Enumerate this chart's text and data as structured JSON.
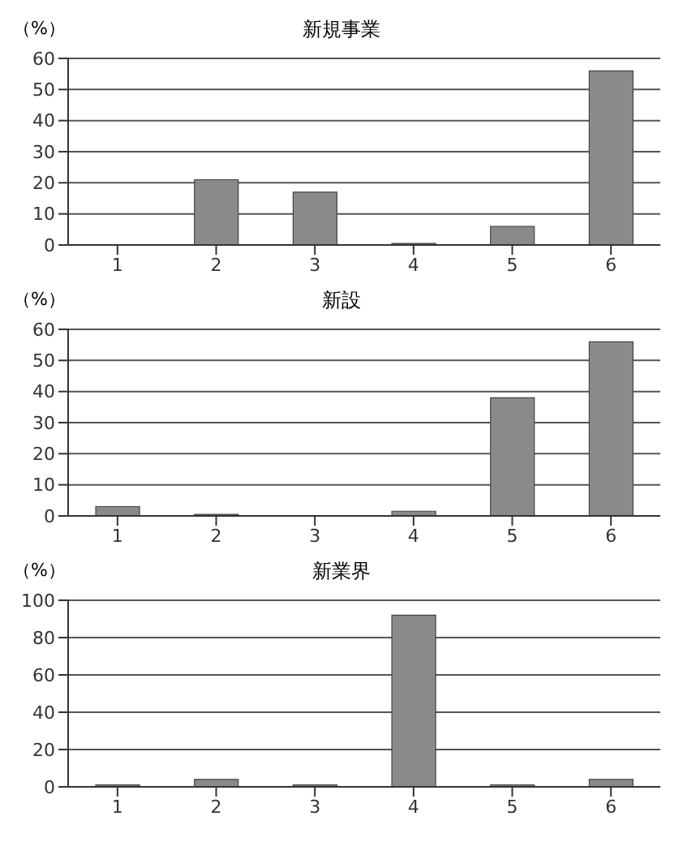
{
  "chart_data": [
    {
      "type": "bar",
      "title": "新規事業",
      "ylabel": "（%）",
      "categories": [
        "1",
        "2",
        "3",
        "4",
        "5",
        "6"
      ],
      "values": [
        0,
        21,
        17,
        0.5,
        6,
        56
      ],
      "color": "#8a8a8a",
      "ylim": [
        0,
        60
      ],
      "yticks": [
        0,
        10,
        20,
        30,
        40,
        50,
        60
      ],
      "grid": "y"
    },
    {
      "type": "bar",
      "title": "新設",
      "ylabel": "（%）",
      "categories": [
        "1",
        "2",
        "3",
        "4",
        "5",
        "6"
      ],
      "values": [
        3,
        0.5,
        0,
        1.5,
        38,
        56
      ],
      "color": "#8a8a8a",
      "ylim": [
        0,
        60
      ],
      "yticks": [
        0,
        10,
        20,
        30,
        40,
        50,
        60
      ],
      "grid": "y"
    },
    {
      "type": "bar",
      "title": "新業界",
      "ylabel": "（%）",
      "categories": [
        "1",
        "2",
        "3",
        "4",
        "5",
        "6"
      ],
      "values": [
        1,
        4,
        1,
        92,
        1,
        4
      ],
      "color": "#8a8a8a",
      "ylim": [
        0,
        100
      ],
      "yticks": [
        0,
        20,
        40,
        60,
        80,
        100
      ],
      "grid": "y"
    }
  ]
}
